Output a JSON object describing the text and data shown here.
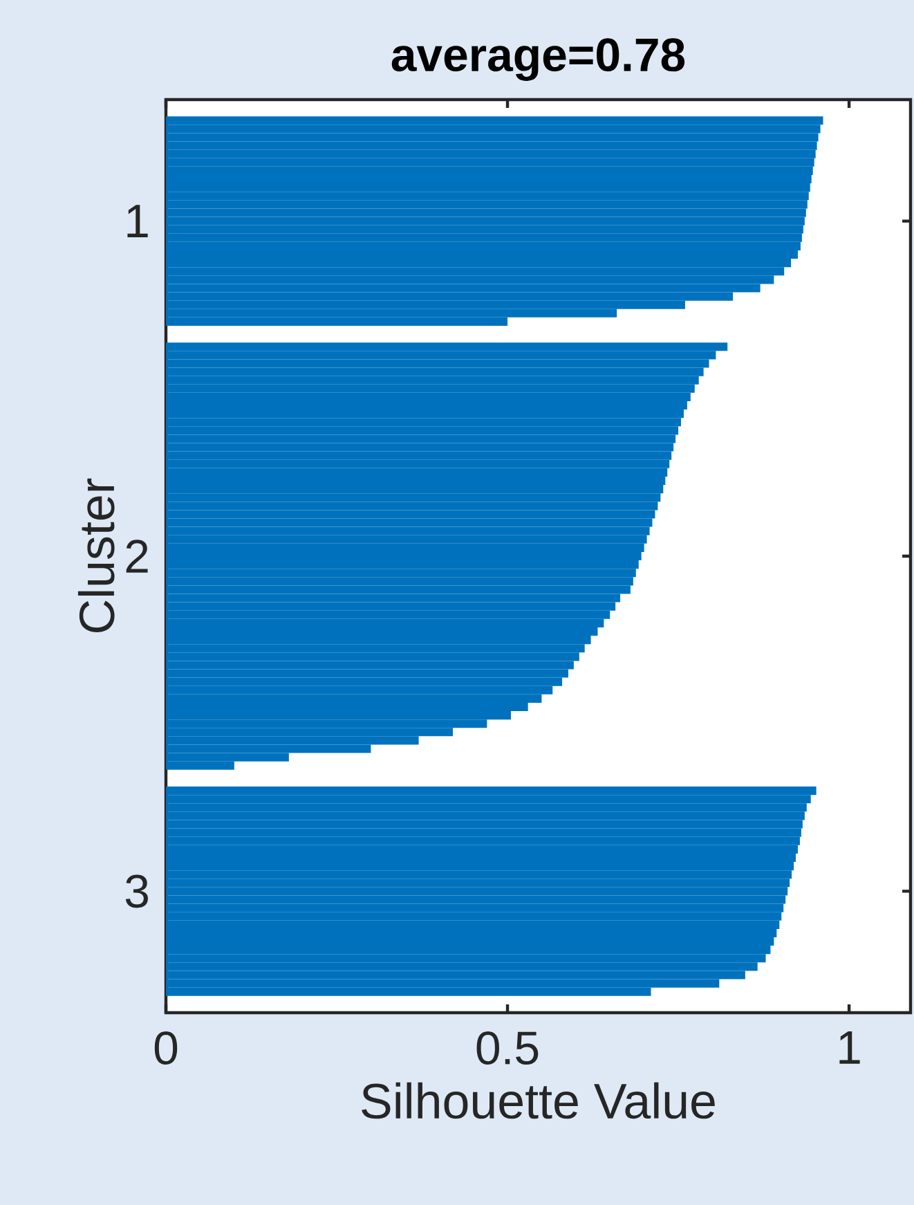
{
  "chart_data": {
    "type": "bar",
    "orientation": "horizontal",
    "title": "average=0.78",
    "xlabel": "Silhouette Value",
    "ylabel": "Cluster",
    "xlim": [
      0,
      1.09
    ],
    "xticks": [
      0,
      0.5,
      1
    ],
    "categories": [
      null,
      null,
      null,
      null,
      null,
      null,
      null,
      null,
      null,
      null,
      null,
      null,
      null,
      null,
      "1",
      null,
      null,
      null,
      null,
      null,
      null,
      null,
      null,
      null,
      null,
      null,
      null,
      null,
      null,
      null,
      null,
      null,
      null,
      null,
      null,
      null,
      null,
      null,
      null,
      null,
      null,
      null,
      null,
      null,
      null,
      null,
      null,
      null,
      null,
      null,
      null,
      null,
      null,
      null,
      "2",
      null,
      null,
      null,
      null,
      null,
      null,
      null,
      null,
      null,
      null,
      null,
      null,
      null,
      null,
      null,
      null,
      null,
      null,
      null,
      null,
      null,
      null,
      null,
      null,
      null,
      null,
      null,
      null,
      null,
      null,
      null,
      null,
      null,
      null,
      null,
      null,
      null,
      null,
      null,
      "3",
      null,
      null,
      null,
      null,
      null,
      null,
      null,
      null,
      null,
      null,
      null,
      null,
      null,
      null
    ],
    "series": [
      {
        "color": "#0072bd",
        "values": [
          null,
          null,
          0.962,
          0.958,
          0.955,
          0.953,
          0.951,
          0.949,
          0.947,
          0.945,
          0.943,
          0.941,
          0.939,
          0.937,
          0.935,
          0.933,
          0.931,
          0.929,
          0.925,
          0.915,
          0.905,
          0.89,
          0.87,
          0.83,
          0.76,
          0.66,
          0.5,
          null,
          null,
          0.822,
          0.805,
          0.795,
          0.787,
          0.78,
          0.774,
          0.768,
          0.763,
          0.758,
          0.754,
          0.75,
          0.746,
          0.743,
          0.74,
          0.737,
          0.734,
          0.731,
          0.728,
          0.724,
          0.72,
          0.716,
          0.712,
          0.708,
          0.704,
          0.7,
          0.696,
          0.692,
          0.688,
          0.684,
          0.68,
          0.665,
          0.658,
          0.65,
          0.641,
          0.632,
          0.622,
          0.613,
          0.605,
          0.597,
          0.589,
          0.58,
          0.566,
          0.55,
          0.53,
          0.505,
          0.47,
          0.42,
          0.37,
          0.3,
          0.18,
          0.1,
          null,
          null,
          0.952,
          0.944,
          0.938,
          0.935,
          0.932,
          0.93,
          0.928,
          0.925,
          0.922,
          0.919,
          0.916,
          0.913,
          0.91,
          0.907,
          0.904,
          0.901,
          0.898,
          0.894,
          0.89,
          0.885,
          0.878,
          0.866,
          0.848,
          0.81,
          0.71,
          null,
          null
        ]
      }
    ]
  }
}
